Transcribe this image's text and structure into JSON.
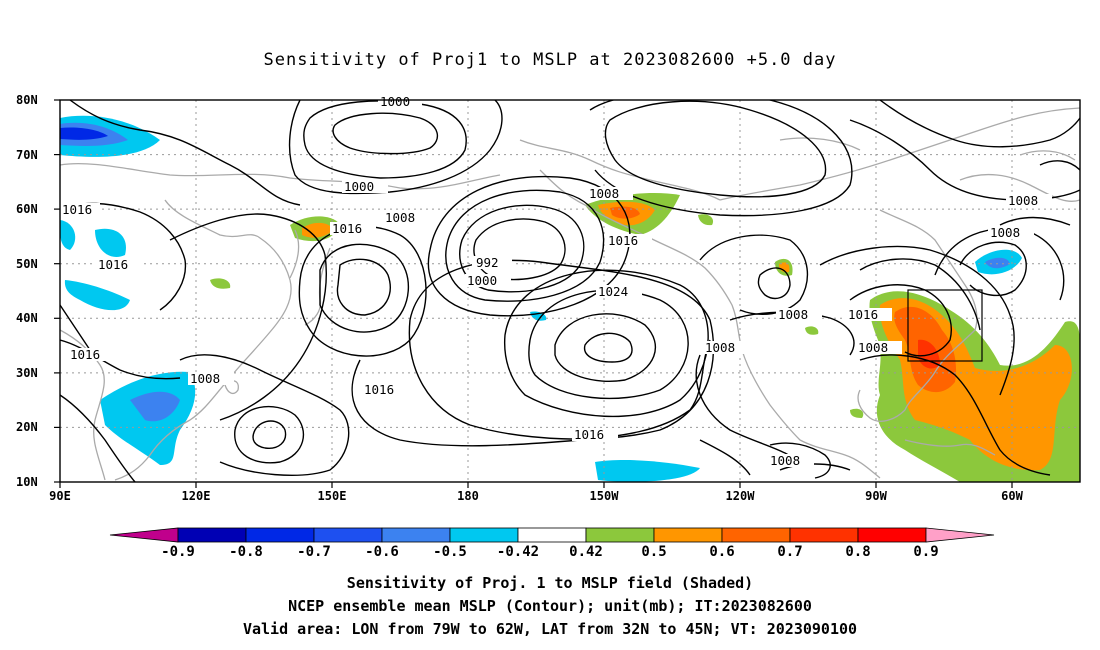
{
  "title": "Sensitivity of Proj1 to MSLP at 2023082600 +5.0 day",
  "axes": {
    "lat_ticks": [
      "80N",
      "70N",
      "60N",
      "50N",
      "40N",
      "30N",
      "20N",
      "10N"
    ],
    "lon_ticks": [
      "90E",
      "120E",
      "150E",
      "180",
      "150W",
      "120W",
      "90W",
      "60W"
    ]
  },
  "contour_labels": [
    "1000",
    "1000",
    "1016",
    "1008",
    "1016",
    "1016",
    "992",
    "1000",
    "1008",
    "1016",
    "1024",
    "1008",
    "1008",
    "1016",
    "1016",
    "1016",
    "1008",
    "1008",
    "1008",
    "1008",
    "1016",
    "1008"
  ],
  "valid_area_box": {
    "lon_min": -79,
    "lon_max": -62,
    "lat_min": 32,
    "lat_max": 45
  },
  "colorbar": {
    "labels": [
      "-0.9",
      "-0.8",
      "-0.7",
      "-0.6",
      "-0.5",
      "-0.42",
      "0.42",
      "0.5",
      "0.6",
      "0.7",
      "0.8",
      "0.9"
    ],
    "colors": [
      "#c0008c",
      "#0000b4",
      "#0028e6",
      "#1e50f0",
      "#3c82f0",
      "#00c8f0",
      "#ffffff",
      "#8cc83c",
      "#ff9600",
      "#ff6400",
      "#ff3200",
      "#ff0000",
      "#ffa0c8"
    ]
  },
  "captions": {
    "line1": "Sensitivity of Proj. 1 to MSLP field (Shaded)",
    "line2": "NCEP ensemble mean MSLP (Contour); unit(mb); IT:2023082600",
    "line3": "Valid area: LON from 79W to 62W, LAT from 32N to 45N; VT: 2023090100"
  }
}
